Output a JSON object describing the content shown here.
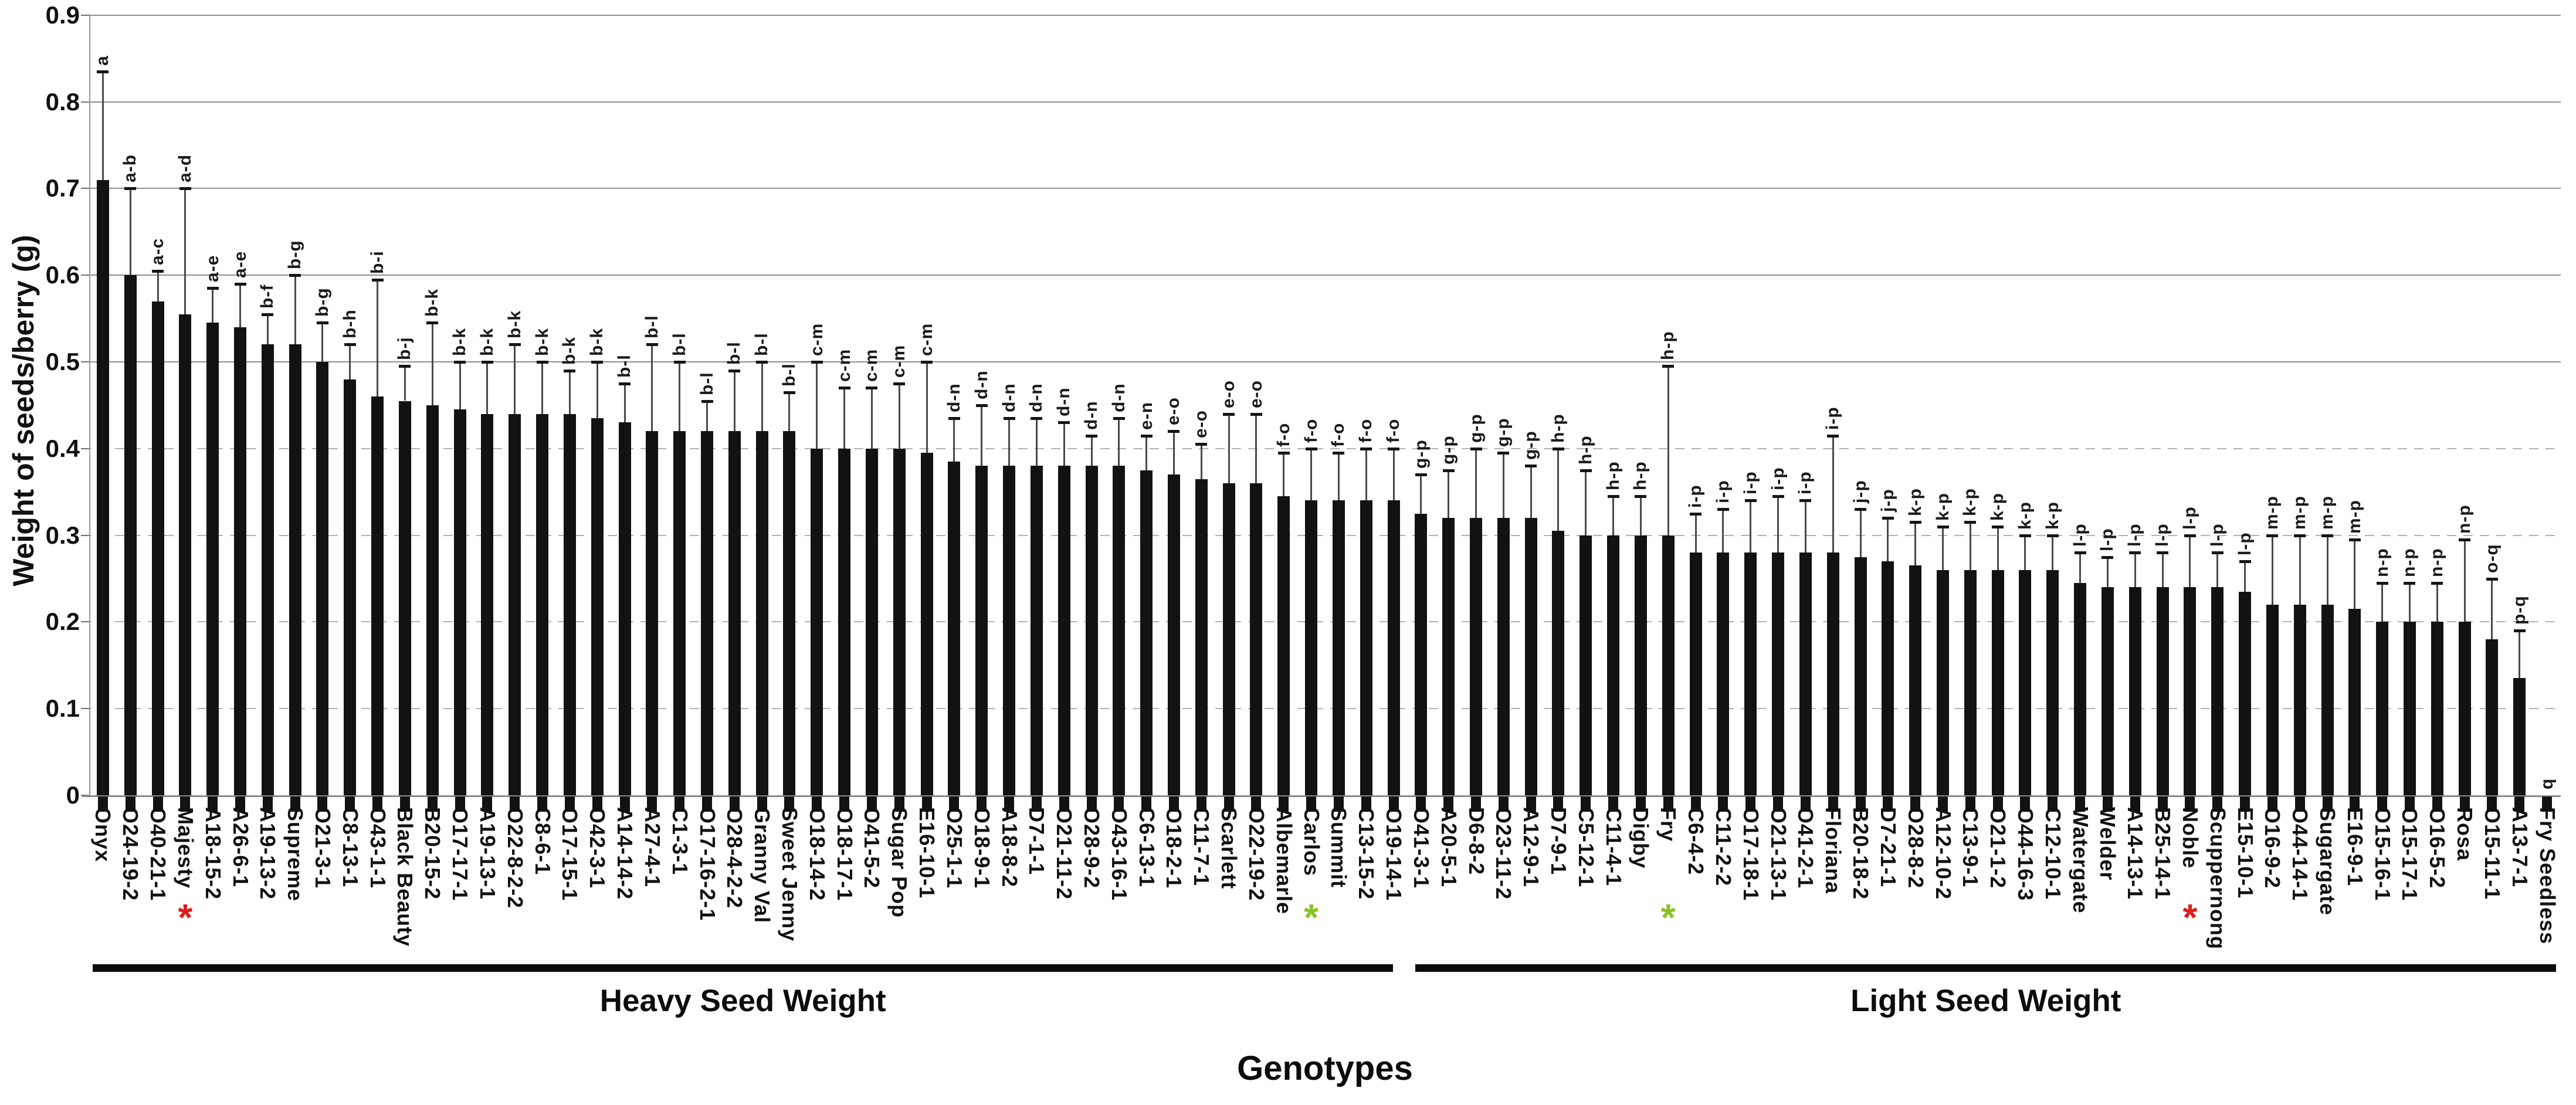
{
  "chart_data": {
    "type": "bar",
    "title": "",
    "ylabel": "Weight of seeds/berry (g)",
    "xlabel": "Genotypes",
    "ylim": [
      0,
      0.9
    ],
    "ytick_step": 0.1,
    "ytick_labels": [
      "0",
      "0.1",
      "0.2",
      "0.3",
      "0.4",
      "0.5",
      "0.6",
      "0.7",
      "0.8",
      "0.9"
    ],
    "grid": "horizontal gridlines every 0.1; upper lines solid gray, lower lines dashed",
    "legend": "none",
    "bar_color": "#121212",
    "error_bars": "upper whiskers with caps",
    "groups": [
      {
        "label": "Heavy Seed Weight",
        "first": "Onyx",
        "last": "O19-14-1",
        "count": 48
      },
      {
        "label": "Light Seed Weight",
        "first": "O41-3-1",
        "last": "Fry Seedless",
        "count": 42
      }
    ],
    "categories": [
      "Onyx",
      "O24-19-2",
      "O40-21-1",
      "Majesty",
      "A18-15-2",
      "A26-6-1",
      "A19-13-2",
      "Supreme",
      "O21-3-1",
      "C8-13-1",
      "O43-1-1",
      "Black Beauty",
      "B20-15-2",
      "O17-17-1",
      "A19-13-1",
      "O22-8-2-2",
      "C8-6-1",
      "O17-15-1",
      "O42-3-1",
      "A14-14-2",
      "A27-4-1",
      "C1-3-1",
      "O17-16-2-1",
      "O28-4-2-2",
      "Granny Val",
      "Sweet Jenny",
      "O18-14-2",
      "O18-17-1",
      "O41-5-2",
      "Sugar Pop",
      "E16-10-1",
      "O25-1-1",
      "O18-9-1",
      "A18-8-2",
      "D7-1-1",
      "O21-11-2",
      "O28-9-2",
      "O43-16-1",
      "C6-13-1",
      "O18-2-1",
      "C11-7-1",
      "Scarlett",
      "O22-19-2",
      "Albemarle",
      "Carlos",
      "Summit",
      "C13-15-2",
      "O19-14-1",
      "O41-3-1",
      "A20-5-1",
      "D6-8-2",
      "O23-11-2",
      "A12-9-1",
      "D7-9-1",
      "C5-12-1",
      "C11-4-1",
      "Digby",
      "Fry",
      "C6-4-2",
      "C11-2-2",
      "O17-18-1",
      "O21-13-1",
      "O41-2-1",
      "Floriana",
      "B20-18-2",
      "D7-21-1",
      "O28-8-2",
      "A12-10-2",
      "C13-9-1",
      "O21-1-2",
      "O44-16-3",
      "C12-10-1",
      "Watergate",
      "Welder",
      "A14-13-1",
      "B25-14-1",
      "Noble",
      "Scuppernong",
      "E15-10-1",
      "O16-9-2",
      "O44-14-1",
      "Sugargate",
      "E16-9-1",
      "O15-16-1",
      "O15-17-1",
      "O16-5-2",
      "Rosa",
      "O15-11-1",
      "A13-7-1",
      "Fry Seedless"
    ],
    "values": [
      0.71,
      0.6,
      0.57,
      0.555,
      0.545,
      0.54,
      0.52,
      0.52,
      0.5,
      0.48,
      0.46,
      0.455,
      0.45,
      0.445,
      0.44,
      0.44,
      0.44,
      0.44,
      0.435,
      0.43,
      0.42,
      0.42,
      0.42,
      0.42,
      0.42,
      0.42,
      0.4,
      0.4,
      0.4,
      0.4,
      0.395,
      0.385,
      0.38,
      0.38,
      0.38,
      0.38,
      0.38,
      0.38,
      0.375,
      0.37,
      0.365,
      0.36,
      0.36,
      0.345,
      0.34,
      0.34,
      0.34,
      0.34,
      0.325,
      0.32,
      0.32,
      0.32,
      0.32,
      0.305,
      0.3,
      0.3,
      0.3,
      0.3,
      0.28,
      0.28,
      0.28,
      0.28,
      0.28,
      0.28,
      0.275,
      0.27,
      0.265,
      0.26,
      0.26,
      0.26,
      0.26,
      0.26,
      0.245,
      0.24,
      0.24,
      0.24,
      0.24,
      0.24,
      0.235,
      0.22,
      0.22,
      0.22,
      0.215,
      0.2,
      0.2,
      0.2,
      0.2,
      0.18,
      0.135,
      0
    ],
    "error_upper": [
      0.835,
      0.7,
      0.605,
      0.7,
      0.585,
      0.59,
      0.555,
      0.6,
      0.545,
      0.52,
      0.595,
      0.495,
      0.545,
      0.5,
      0.5,
      0.52,
      0.5,
      0.49,
      0.5,
      0.475,
      0.52,
      0.5,
      0.455,
      0.49,
      0.5,
      0.465,
      0.5,
      0.47,
      0.47,
      0.475,
      0.5,
      0.435,
      0.45,
      0.435,
      0.435,
      0.43,
      0.415,
      0.435,
      0.415,
      0.42,
      0.405,
      0.44,
      0.44,
      0.395,
      0.4,
      0.395,
      0.4,
      0.4,
      0.37,
      0.375,
      0.4,
      0.395,
      0.38,
      0.4,
      0.375,
      0.345,
      0.345,
      0.495,
      0.325,
      0.33,
      0.34,
      0.345,
      0.34,
      0.415,
      0.33,
      0.32,
      0.315,
      0.31,
      0.315,
      0.31,
      0.3,
      0.3,
      0.28,
      0.275,
      0.28,
      0.28,
      0.3,
      0.28,
      0.27,
      0.3,
      0.3,
      0.3,
      0.295,
      0.245,
      0.245,
      0.245,
      0.295,
      0.25,
      0.19,
      0
    ],
    "sig_letters": [
      "a",
      "a-b",
      "a-c",
      "a-d",
      "a-e",
      "a-e",
      "b-f",
      "b-g",
      "b-g",
      "b-h",
      "b-i",
      "b-j",
      "b-k",
      "b-k",
      "b-k",
      "b-k",
      "b-k",
      "b-k",
      "b-k",
      "b-l",
      "b-l",
      "b-l",
      "b-l",
      "b-l",
      "b-l",
      "b-l",
      "c-m",
      "c-m",
      "c-m",
      "c-m",
      "c-m",
      "d-n",
      "d-n",
      "d-n",
      "d-n",
      "d-n",
      "d-n",
      "d-n",
      "e-n",
      "e-o",
      "e-o",
      "e-o",
      "e-o",
      "f-o",
      "f-o",
      "f-o",
      "f-o",
      "f-o",
      "g-p",
      "g-p",
      "g-p",
      "g-p",
      "g-p",
      "h-p",
      "h-p",
      "h-p",
      "h-p",
      "h-p",
      "i-p",
      "i-p",
      "i-p",
      "i-p",
      "i-p",
      "i-p",
      "j-p",
      "j-p",
      "k-p",
      "k-p",
      "k-p",
      "k-p",
      "k-p",
      "k-p",
      "l-p",
      "l-p",
      "l-p",
      "l-p",
      "l-p",
      "l-p",
      "l-p",
      "m-p",
      "m-p",
      "m-p",
      "m-p",
      "n-p",
      "n-p",
      "n-p",
      "n-p",
      "o-q",
      "p-q",
      "q"
    ],
    "markers": [
      {
        "category": "Majesty",
        "index": 3,
        "symbol": "*",
        "color": "#e01b1b"
      },
      {
        "category": "Carlos",
        "index": 44,
        "symbol": "*",
        "color": "#8bc122"
      },
      {
        "category": "Fry",
        "index": 57,
        "symbol": "*",
        "color": "#8bc122"
      },
      {
        "category": "Noble",
        "index": 76,
        "symbol": "*",
        "color": "#e01b1b"
      }
    ]
  },
  "colors": {
    "bar": "#121212",
    "gridline_solid": "#8f8f8f",
    "gridline_dashed": "#b3b3b3",
    "red_marker": "#e01b1b",
    "green_marker": "#8bc122"
  }
}
